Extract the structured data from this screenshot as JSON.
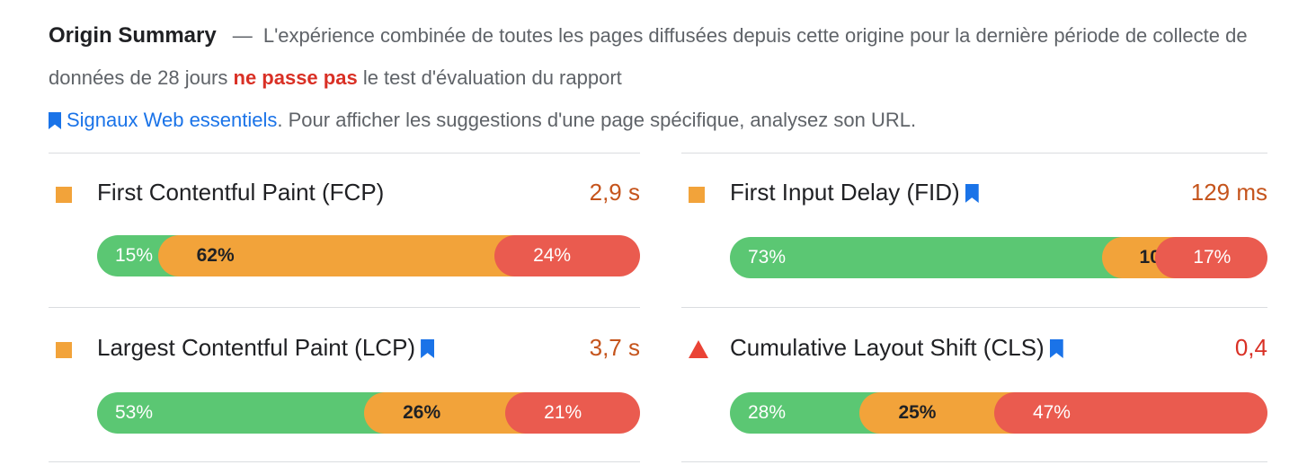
{
  "summary": {
    "title": "Origin Summary",
    "dash": "—",
    "text_before": "L'expérience combinée de toutes les pages diffusées depuis cette origine pour la dernière période de collecte de données de 28 jours",
    "fail_text": "ne passe pas",
    "text_after": "le test d'évaluation du rapport",
    "link_text": "Signaux Web essentiels",
    "text_end": ". Pour afficher les suggestions d'une page spécifique, analysez son URL."
  },
  "metrics": [
    {
      "name": "First Contentful Paint (FCP)",
      "value": "2,9 s",
      "status": "average",
      "has_bookmark": false,
      "distribution": {
        "good": "15%",
        "average": "62%",
        "poor": "24%"
      }
    },
    {
      "name": "First Input Delay (FID)",
      "value": "129 ms",
      "status": "average",
      "has_bookmark": true,
      "distribution": {
        "good": "73%",
        "average": "10%",
        "poor": "17%"
      }
    },
    {
      "name": "Largest Contentful Paint (LCP)",
      "value": "3,7 s",
      "status": "average",
      "has_bookmark": true,
      "distribution": {
        "good": "53%",
        "average": "26%",
        "poor": "21%"
      }
    },
    {
      "name": "Cumulative Layout Shift (CLS)",
      "value": "0,4",
      "status": "poor",
      "has_bookmark": true,
      "distribution": {
        "good": "28%",
        "average": "25%",
        "poor": "47%"
      }
    }
  ],
  "colors": {
    "good": "#5bc773",
    "average": "#f2a33a",
    "poor": "#ea5b4f",
    "fail_text": "#d93025",
    "link": "#1a73e8"
  },
  "icons": {
    "average_indicator": "orange-square-icon",
    "poor_indicator": "red-triangle-icon",
    "bookmark": "bookmark-icon"
  }
}
